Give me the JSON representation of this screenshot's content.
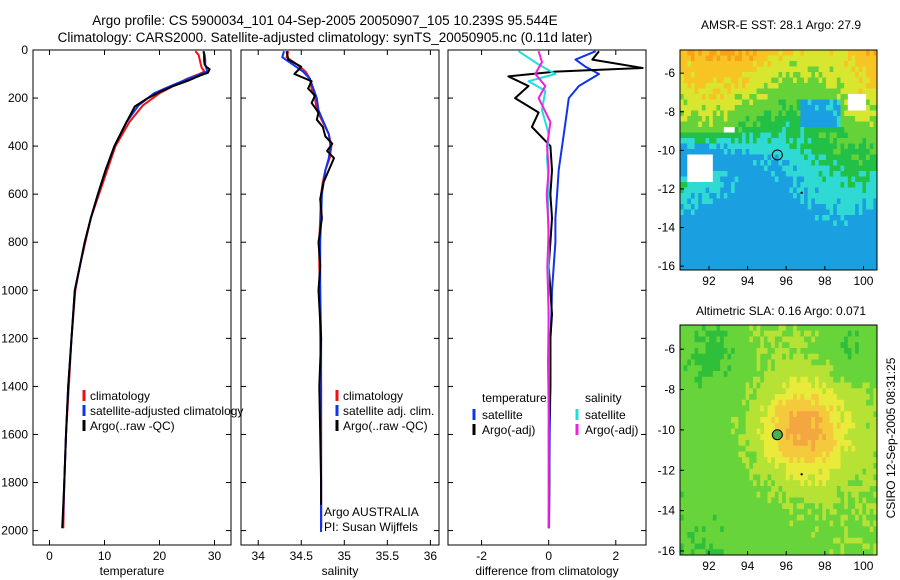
{
  "figure": {
    "title_line1": "Argo profile: CS 5900034_101 04-Sep-2005 20050907_105 10.239S 95.544E",
    "title_line2": "Climatology: CARS2000. Satellite-adjusted climatology: synTS_20050905.nc (0.11d later)",
    "credit": "CSIRO 12-Sep-2005 08:31:25"
  },
  "chart_data": [
    {
      "type": "line",
      "id": "temperature",
      "xlabel": "temperature",
      "ylabel": "",
      "xlim": [
        -3,
        33
      ],
      "ylim": [
        2060,
        0
      ],
      "xticks": [
        0,
        10,
        20,
        30
      ],
      "xtick_labels": [
        "0",
        "10",
        "20",
        "30"
      ],
      "yticks": [
        0,
        200,
        400,
        600,
        800,
        1000,
        1200,
        1400,
        1600,
        1800,
        2000
      ],
      "ytick_labels": [
        "0",
        "200",
        "400",
        "600",
        "800",
        "1000",
        "1200",
        "1400",
        "1600",
        "1800",
        "2000"
      ],
      "legend": [
        "climatology",
        "satellite-adjusted climatology",
        "Argo(..raw -QC)"
      ],
      "series": [
        {
          "name": "climatology",
          "color": "#ee1111",
          "x": [
            26.5,
            27.1,
            27.3,
            27.5,
            27.7,
            28.2,
            27.2,
            25.0,
            22.5,
            20.0,
            17.0,
            14.5,
            12.0,
            10.5,
            9.0,
            7.5,
            6.5,
            5.5,
            4.7,
            4.0,
            3.5,
            3.0,
            2.7,
            2.5
          ],
          "y": [
            5,
            20,
            40,
            60,
            75,
            90,
            100,
            120,
            150,
            180,
            230,
            300,
            400,
            500,
            600,
            700,
            800,
            900,
            1000,
            1200,
            1400,
            1600,
            1800,
            1990
          ]
        },
        {
          "name": "satellite-adjusted climatology",
          "color": "#1133ee",
          "x": [
            28.0,
            28.2,
            28.3,
            28.3,
            28.5,
            28.7,
            27.6,
            25.2,
            22.0,
            19.0,
            16.2,
            14.0,
            11.8,
            10.2,
            8.8,
            7.5,
            6.4,
            5.5,
            4.6,
            4.0,
            3.4,
            3.0,
            2.7,
            2.4
          ],
          "y": [
            5,
            20,
            40,
            60,
            75,
            90,
            100,
            120,
            150,
            180,
            230,
            300,
            400,
            500,
            600,
            700,
            800,
            900,
            1000,
            1200,
            1400,
            1600,
            1800,
            1990
          ]
        },
        {
          "name": "Argo(..raw -QC)",
          "color": "#000000",
          "x": [
            28.0,
            28.1,
            28.1,
            28.2,
            28.5,
            29.1,
            28.8,
            27.5,
            25.5,
            22.5,
            20.0,
            17.5,
            15.5,
            14.0,
            11.8,
            10.2,
            8.8,
            7.5,
            6.4,
            5.5,
            4.6,
            4.0,
            3.4,
            3.0,
            2.7,
            2.3
          ],
          "y": [
            5,
            20,
            40,
            60,
            70,
            80,
            95,
            105,
            125,
            150,
            175,
            205,
            235,
            300,
            400,
            500,
            600,
            700,
            800,
            900,
            1000,
            1200,
            1400,
            1600,
            1800,
            1990
          ]
        }
      ]
    },
    {
      "type": "line",
      "id": "salinity",
      "xlabel": "salinity",
      "ylabel": "",
      "xlim": [
        33.8,
        36.1
      ],
      "ylim": [
        2060,
        0
      ],
      "xticks": [
        34,
        34.5,
        35,
        35.5,
        36
      ],
      "xtick_labels": [
        "34",
        "34.5",
        "35",
        "35.5",
        "36"
      ],
      "yticks": [
        0,
        200,
        400,
        600,
        800,
        1000,
        1200,
        1400,
        1600,
        1800,
        2000
      ],
      "legend": [
        "climatology",
        "satellite adj. clim.",
        "Argo(..raw -QC)"
      ],
      "annotation": [
        "Argo AUSTRALIA",
        "PI: Susan Wijffels"
      ],
      "series": [
        {
          "name": "climatology",
          "color": "#ee1111",
          "x": [
            34.35,
            34.33,
            34.45,
            34.55,
            34.6,
            34.62,
            34.66,
            34.68,
            34.75,
            34.82,
            34.85,
            34.83,
            34.78,
            34.75,
            34.73,
            34.72,
            34.71,
            34.71,
            34.72,
            34.72,
            34.73,
            34.73,
            34.73,
            34.73
          ],
          "y": [
            5,
            30,
            60,
            90,
            120,
            160,
            200,
            250,
            300,
            350,
            400,
            450,
            500,
            550,
            600,
            700,
            800,
            900,
            1000,
            1200,
            1400,
            1600,
            1800,
            1990
          ]
        },
        {
          "name": "satellite adj. clim.",
          "color": "#1133ee",
          "x": [
            34.3,
            34.28,
            34.4,
            34.52,
            34.6,
            34.64,
            34.68,
            34.7,
            34.76,
            34.82,
            34.84,
            34.82,
            34.78,
            34.76,
            34.74,
            34.73,
            34.72,
            34.72,
            34.72,
            34.73,
            34.73,
            34.73,
            34.73,
            34.73
          ],
          "y": [
            5,
            30,
            60,
            90,
            120,
            160,
            200,
            250,
            300,
            350,
            400,
            450,
            500,
            550,
            600,
            700,
            800,
            900,
            1000,
            1200,
            1400,
            1600,
            1800,
            1990
          ]
        },
        {
          "name": "Argo(..raw -QC)",
          "color": "#000000",
          "x": [
            34.33,
            34.35,
            34.5,
            34.42,
            34.62,
            34.58,
            34.66,
            34.62,
            34.7,
            34.68,
            34.75,
            34.78,
            34.86,
            34.8,
            34.88,
            34.82,
            34.76,
            34.72,
            34.74,
            34.7,
            34.72,
            34.7,
            34.73,
            34.71,
            34.72,
            34.73,
            34.73,
            34.73
          ],
          "y": [
            5,
            40,
            70,
            100,
            130,
            160,
            190,
            220,
            260,
            290,
            320,
            360,
            390,
            420,
            450,
            500,
            550,
            620,
            700,
            800,
            900,
            1000,
            1200,
            1400,
            1600,
            1800,
            1900,
            1990
          ]
        }
      ]
    },
    {
      "type": "line",
      "id": "difference",
      "xlabel": "difference from climatology",
      "ylabel": "",
      "xlim": [
        -3,
        2.9
      ],
      "ylim": [
        2060,
        0
      ],
      "xticks": [
        -2,
        0,
        2
      ],
      "xtick_labels": [
        "-2",
        "0",
        "2"
      ],
      "yticks": [
        0,
        200,
        400,
        600,
        800,
        1000,
        1200,
        1400,
        1600,
        1800,
        2000
      ],
      "legend_groups": [
        {
          "heading": "temperature",
          "items": [
            "satellite",
            "Argo(-adj)"
          ]
        },
        {
          "heading": "salinity",
          "items": [
            "satellite",
            "Argo(-adj)"
          ]
        }
      ],
      "series": [
        {
          "name": "temperature satellite",
          "color": "#1133ee",
          "x": [
            1.4,
            0.8,
            1.1,
            1.5,
            0.9,
            0.6,
            0.5,
            0.4,
            0.3,
            0.25,
            0.2,
            0.2,
            0.15,
            0.1,
            0.08,
            0.05,
            0.05,
            0.03,
            0.02,
            0.02,
            0.01
          ],
          "y": [
            5,
            40,
            70,
            100,
            150,
            200,
            300,
            400,
            500,
            600,
            700,
            800,
            900,
            1000,
            1100,
            1200,
            1400,
            1600,
            1800,
            1900,
            1990
          ]
        },
        {
          "name": "temperature Argo(-adj)",
          "color": "#000000",
          "x": [
            1.5,
            1.3,
            2.8,
            0.2,
            -1.2,
            -0.6,
            -1.0,
            -0.3,
            -0.5,
            0.05,
            0.1,
            0.05,
            0.1,
            0.05,
            0.0,
            0.05,
            0.1,
            0.05,
            0.05,
            0.0,
            0.02,
            0.0
          ],
          "y": [
            5,
            40,
            75,
            90,
            110,
            150,
            200,
            260,
            320,
            400,
            500,
            600,
            700,
            800,
            900,
            1000,
            1100,
            1200,
            1400,
            1600,
            1800,
            1990
          ]
        },
        {
          "name": "salinity satellite",
          "color": "#22dddd",
          "x": [
            -0.9,
            -0.3,
            0.2,
            -0.6,
            -0.1,
            -0.2,
            0.0,
            -0.05,
            0.0,
            -0.02,
            0.0,
            -0.01,
            0.0,
            0.0,
            0.0,
            0.0
          ],
          "y": [
            5,
            60,
            100,
            130,
            170,
            250,
            350,
            450,
            550,
            700,
            850,
            1000,
            1200,
            1500,
            1800,
            1990
          ]
        },
        {
          "name": "salinity Argo(-adj)",
          "color": "#ee22dd",
          "x": [
            -0.3,
            -0.2,
            -0.4,
            -0.1,
            -0.3,
            0.05,
            -0.05,
            0.0,
            -0.06,
            0.0,
            -0.04,
            0.0,
            -0.02,
            0.0,
            0.0,
            0.0
          ],
          "y": [
            5,
            50,
            100,
            150,
            200,
            300,
            400,
            500,
            600,
            750,
            900,
            1100,
            1300,
            1500,
            1800,
            1990
          ]
        }
      ]
    },
    {
      "type": "heatmap",
      "id": "sst-map",
      "title": "AMSR-E SST: 28.1 Argo: 27.9",
      "xlim": [
        90.5,
        100.7
      ],
      "ylim": [
        -16.2,
        -4.8
      ],
      "xticks": [
        92,
        94,
        96,
        98,
        100
      ],
      "xtick_labels": [
        "92",
        "94",
        "96",
        "98",
        "100"
      ],
      "yticks": [
        -6,
        -8,
        -10,
        -12,
        -14,
        -16
      ],
      "ytick_labels": [
        "-6",
        "-8",
        "-10",
        "-12",
        "-14",
        "-16"
      ],
      "marker": {
        "lon": 95.54,
        "lat": -10.24
      }
    },
    {
      "type": "heatmap",
      "id": "sla-map",
      "title": "Altimetric SLA: 0.16 Argo: 0.071",
      "xlim": [
        90.5,
        100.7
      ],
      "ylim": [
        -16.2,
        -4.8
      ],
      "xticks": [
        92,
        94,
        96,
        98,
        100
      ],
      "xtick_labels": [
        "92",
        "94",
        "96",
        "98",
        "100"
      ],
      "yticks": [
        -6,
        -8,
        -10,
        -12,
        -14,
        -16
      ],
      "ytick_labels": [
        "-6",
        "-8",
        "-10",
        "-12",
        "-14",
        "-16"
      ],
      "marker": {
        "lon": 95.54,
        "lat": -10.24
      }
    }
  ]
}
